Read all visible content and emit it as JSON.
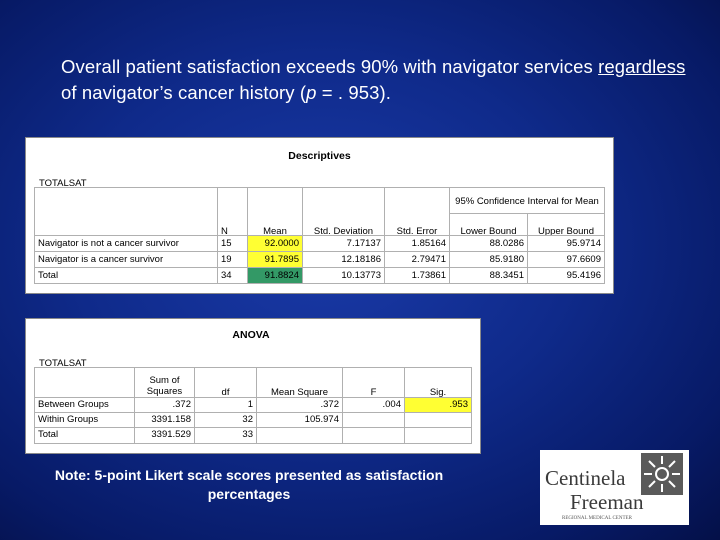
{
  "headline": {
    "part1": "Overall patient satisfaction exceeds 90% with navigator services ",
    "underlined": "regardless",
    "part2": " of navigator’s cancer history (",
    "p_symbol": "p",
    "part3": " = . 953)."
  },
  "descriptives": {
    "title": "Descriptives",
    "variable": "TOTALSAT",
    "ci_header": "95% Confidence Interval for Mean",
    "headers": [
      "N",
      "Mean",
      "Std. Deviation",
      "Std. Error",
      "Lower Bound",
      "Upper Bound"
    ],
    "rows": [
      {
        "label": "Navigator is not a cancer survivor",
        "n": "15",
        "mean": "92.0000",
        "sd": "7.17137",
        "se": "1.85164",
        "lb": "88.0286",
        "ub": "95.9714"
      },
      {
        "label": "Navigator is a cancer survivor",
        "n": "19",
        "mean": "91.7895",
        "sd": "12.18186",
        "se": "2.79471",
        "lb": "85.9180",
        "ub": "97.6609"
      },
      {
        "label": "Total",
        "n": "34",
        "mean": "91.8824",
        "sd": "10.13773",
        "se": "1.73861",
        "lb": "88.3451",
        "ub": "95.4196"
      }
    ]
  },
  "anova": {
    "title": "ANOVA",
    "variable": "TOTALSAT",
    "headers": [
      "Sum of Squares",
      "df",
      "Mean Square",
      "F",
      "Sig."
    ],
    "rows": [
      {
        "label": "Between Groups",
        "ss": ".372",
        "df": "1",
        "ms": ".372",
        "f": ".004",
        "sig": ".953"
      },
      {
        "label": "Within Groups",
        "ss": "3391.158",
        "df": "32",
        "ms": "105.974",
        "f": "",
        "sig": ""
      },
      {
        "label": "Total",
        "ss": "3391.529",
        "df": "33",
        "ms": "",
        "f": "",
        "sig": ""
      }
    ]
  },
  "note": "Note: 5-point Likert scale scores presented as satisfaction percentages",
  "logo": {
    "line1": "Centinela",
    "line2": "Freeman",
    "line3": "REGIONAL MEDICAL CENTER"
  },
  "colors": {
    "highlight_yellow": "#ffff33",
    "highlight_green": "#339966"
  }
}
